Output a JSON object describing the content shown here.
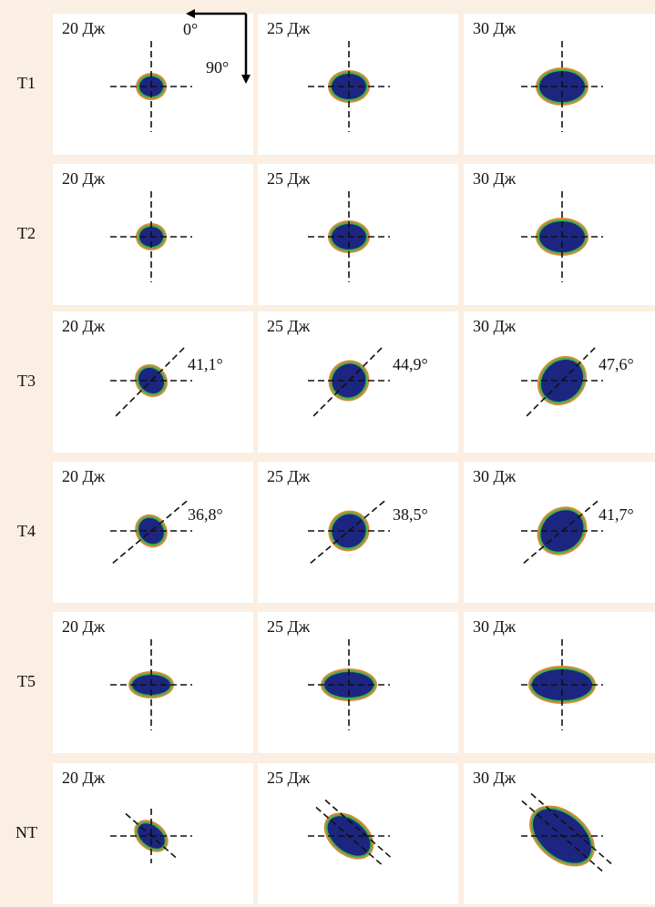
{
  "axis_indicator": {
    "x_label": "0°",
    "y_label": "90°"
  },
  "rows": [
    {
      "label": "T1",
      "cells": [
        {
          "energy": "20 Дж"
        },
        {
          "energy": "25 Дж"
        },
        {
          "energy": "30 Дж"
        }
      ]
    },
    {
      "label": "T2",
      "cells": [
        {
          "energy": "20 Дж"
        },
        {
          "energy": "25 Дж"
        },
        {
          "energy": "30 Дж"
        }
      ]
    },
    {
      "label": "T3",
      "cells": [
        {
          "energy": "20 Дж",
          "angle": "41,1°"
        },
        {
          "energy": "25 Дж",
          "angle": "44,9°"
        },
        {
          "energy": "30 Дж",
          "angle": "47,6°"
        }
      ]
    },
    {
      "label": "T4",
      "cells": [
        {
          "energy": "20 Дж",
          "angle": "36,8°"
        },
        {
          "energy": "25 Дж",
          "angle": "38,5°"
        },
        {
          "energy": "30 Дж",
          "angle": "41,7°"
        }
      ]
    },
    {
      "label": "T5",
      "cells": [
        {
          "energy": "20 Дж"
        },
        {
          "energy": "25 Дж"
        },
        {
          "energy": "30 Дж"
        }
      ]
    },
    {
      "label": "NT",
      "cells": [
        {
          "energy": "20 Дж"
        },
        {
          "energy": "25 Дж"
        },
        {
          "energy": "30 Дж"
        }
      ]
    }
  ]
}
